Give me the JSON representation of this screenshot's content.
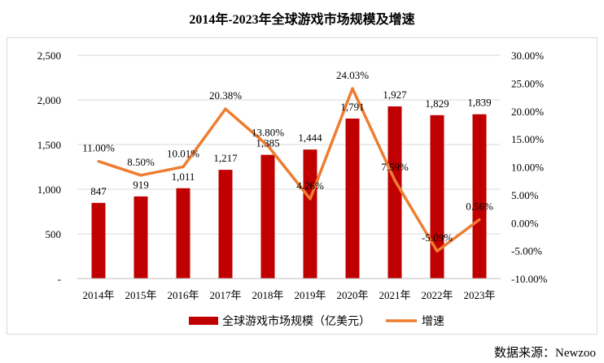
{
  "chart_data": {
    "type": "bar+line",
    "title": "2014年-2023年全球游戏市场规模及增速",
    "categories": [
      "2014年",
      "2015年",
      "2016年",
      "2017年",
      "2018年",
      "2019年",
      "2020年",
      "2021年",
      "2022年",
      "2023年"
    ],
    "series": [
      {
        "name": "全球游戏市场规模（亿美元）",
        "type": "bar",
        "axis": "left",
        "color": "#c00000",
        "values": [
          847,
          919,
          1011,
          1217,
          1385,
          1444,
          1791,
          1927,
          1829,
          1839
        ],
        "labels": [
          "847",
          "919",
          "1,011",
          "1,217",
          "1,385",
          "1,444",
          "1,791",
          "1,927",
          "1,829",
          "1,839"
        ]
      },
      {
        "name": "增速",
        "type": "line",
        "axis": "right",
        "color": "#ed7d31",
        "values": [
          11.0,
          8.5,
          10.01,
          20.38,
          13.8,
          4.26,
          24.03,
          7.59,
          -5.09,
          0.56
        ],
        "labels": [
          "11.00%",
          "8.50%",
          "10.01%",
          "20.38%",
          "13.80%",
          "4.26%",
          "24.03%",
          "7.59%",
          "-5.09%",
          "0.56%"
        ]
      }
    ],
    "y_left": {
      "min": 0,
      "max": 2500,
      "ticks": [
        0,
        500,
        1000,
        1500,
        2000,
        2500
      ],
      "tick_labels": [
        "-",
        "500",
        "1,000",
        "1,500",
        "2,000",
        "2,500"
      ]
    },
    "y_right": {
      "min": -10,
      "max": 30,
      "ticks": [
        -10,
        -5,
        0,
        5,
        10,
        15,
        20,
        25,
        30
      ],
      "tick_labels": [
        "-10.00%",
        "-5.00%",
        "0.00%",
        "5.00%",
        "10.00%",
        "15.00%",
        "20.00%",
        "25.00%",
        "30.00%"
      ]
    },
    "grid": true,
    "legend_position": "bottom"
  },
  "source": "数据来源：Newzoo"
}
